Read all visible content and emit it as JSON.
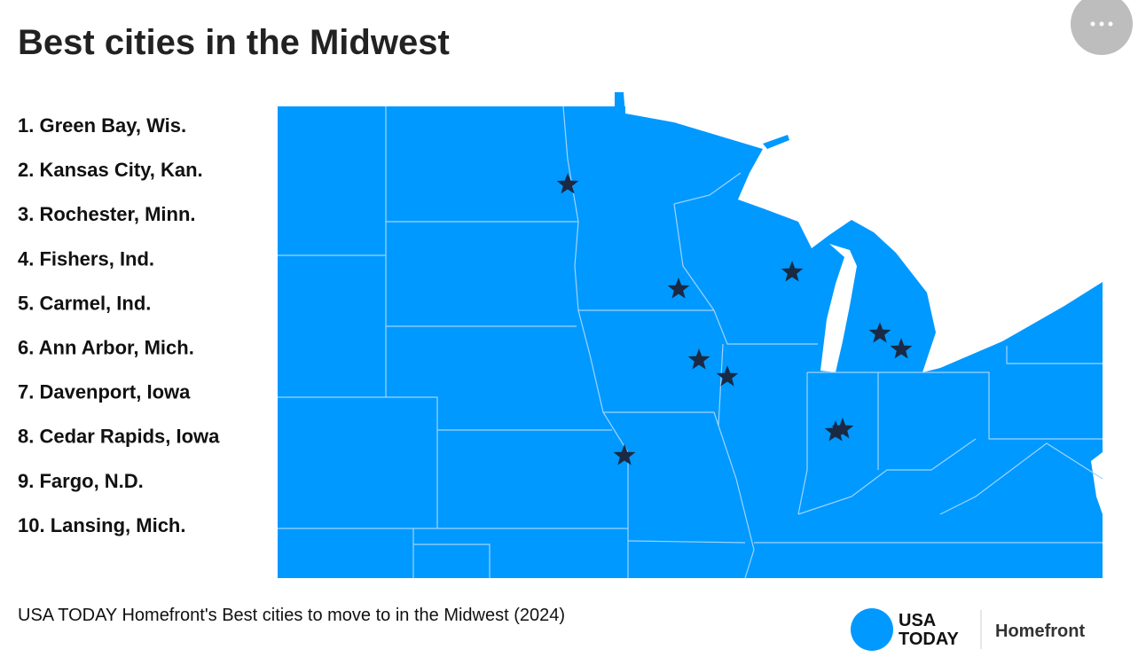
{
  "header": {
    "title": "Best cities in the Midwest"
  },
  "list": [
    "1. Green Bay, Wis.",
    "2. Kansas City, Kan.",
    "3. Rochester, Minn.",
    "4. Fishers, Ind.",
    "5. Carmel, Ind.",
    "6. Ann Arbor, Mich.",
    "7. Davenport, Iowa",
    "8. Cedar Rapids, Iowa",
    "9. Fargo, N.D.",
    "10. Lansing, Mich."
  ],
  "caption": "USA TODAY Homefront's Best cities to move to in the Midwest (2024)",
  "logo": {
    "line1": "USA",
    "line2": "TODAY",
    "brand": "Homefront"
  }
}
